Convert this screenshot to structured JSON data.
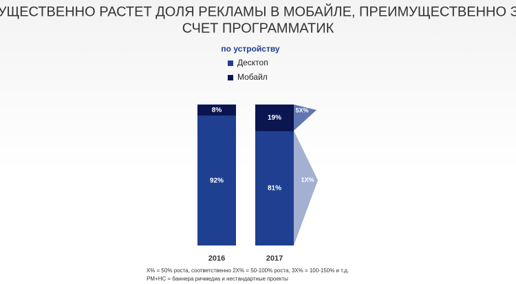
{
  "chart_data": {
    "type": "stacked_bar",
    "title": [
      "СУЩЕСТВЕННО РАСТЕТ ДОЛЯ РЕКЛАМЫ В МОБАЙЛЕ, ПРЕИМУЩЕСТВЕННО ЗА",
      "СЧЕТ ПРОГРАММАТИК"
    ],
    "subtitle": "по устройству",
    "categories": [
      "2016",
      "2017"
    ],
    "series": [
      {
        "name": "Десктоп",
        "color": "#1f3f91",
        "values": [
          92,
          81
        ],
        "value_labels": [
          "92%",
          "81%"
        ]
      },
      {
        "name": "Мобайл",
        "color": "#0b1550",
        "values": [
          8,
          19
        ],
        "value_labels": [
          "8%",
          "19%"
        ]
      }
    ],
    "annotations": [
      "5X%",
      "1X%"
    ],
    "footnotes": [
      "X% = 50% роста, соответственно  2X% = 50-100% роста, 3X% = 100-150% и т.д.",
      "PM+HC = баннера ричмедиа и нестандартные проекты"
    ]
  }
}
